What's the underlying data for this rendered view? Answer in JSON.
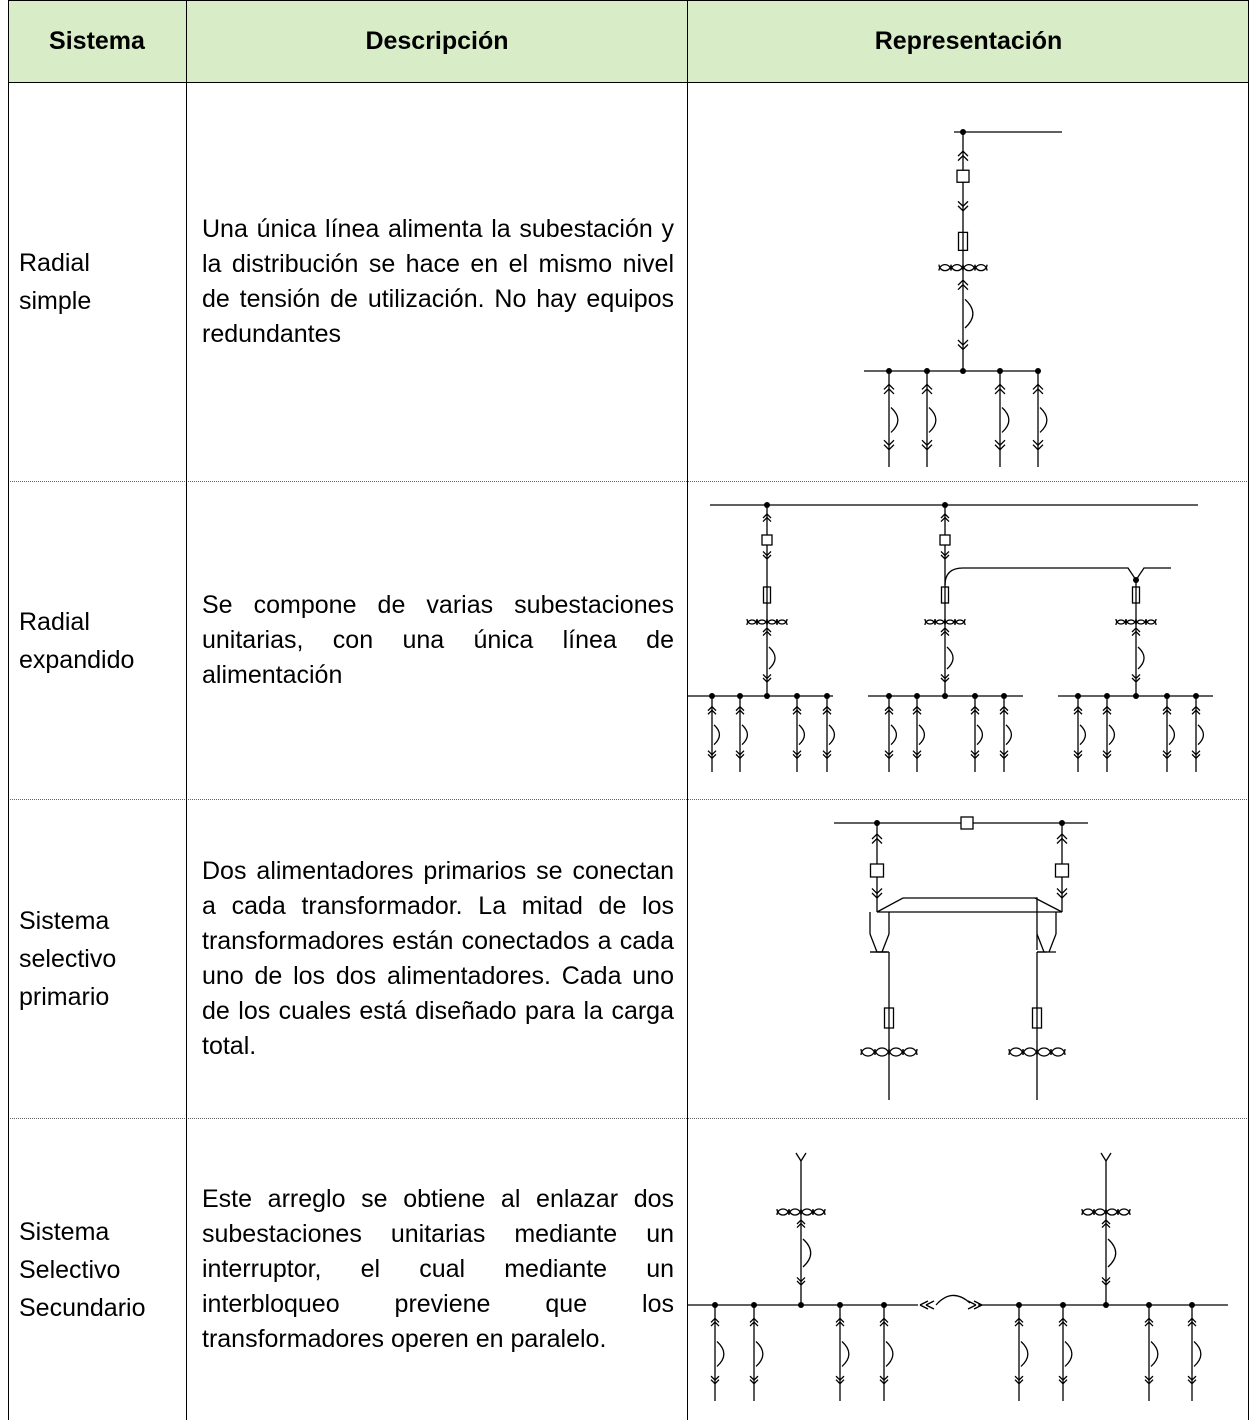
{
  "headers": {
    "sistema": "Sistema",
    "descripcion": "Descripción",
    "representacion": "Representación"
  },
  "rows": [
    {
      "sistema": "Radial\nsimple",
      "descripcion": "Una única línea alimenta la subestación y la distribución se hace en el mismo nivel de tensión de utilización. No hay equipos redundantes"
    },
    {
      "sistema": "Radial\nexpandido",
      "descripcion": "Se compone de varias subestaciones unitarias, con una única línea de alimentación"
    },
    {
      "sistema": "Sistema\nselectivo\nprimario",
      "descripcion": "Dos alimentadores primarios se conectan a cada transformador. La mitad de los transformadores están conectados a cada uno de los dos alimentadores. Cada uno de los cuales está diseñado para la carga total."
    },
    {
      "sistema": "Sistema\nSelectivo\nSecundario",
      "descripcion": "Este arreglo se obtiene al enlazar dos subestaciones unitarias mediante un interruptor, el cual mediante un interbloqueo previene que los transformadores operen en paralelo."
    }
  ],
  "diagram_icons": [
    "busbar",
    "circuit-breaker",
    "fuse",
    "transformer-icon",
    "drawout-connector-icon",
    "load-switch-icon"
  ],
  "colors": {
    "header_bg": "#d7ecc7",
    "border": "#000000",
    "row_divider": "#666666"
  }
}
